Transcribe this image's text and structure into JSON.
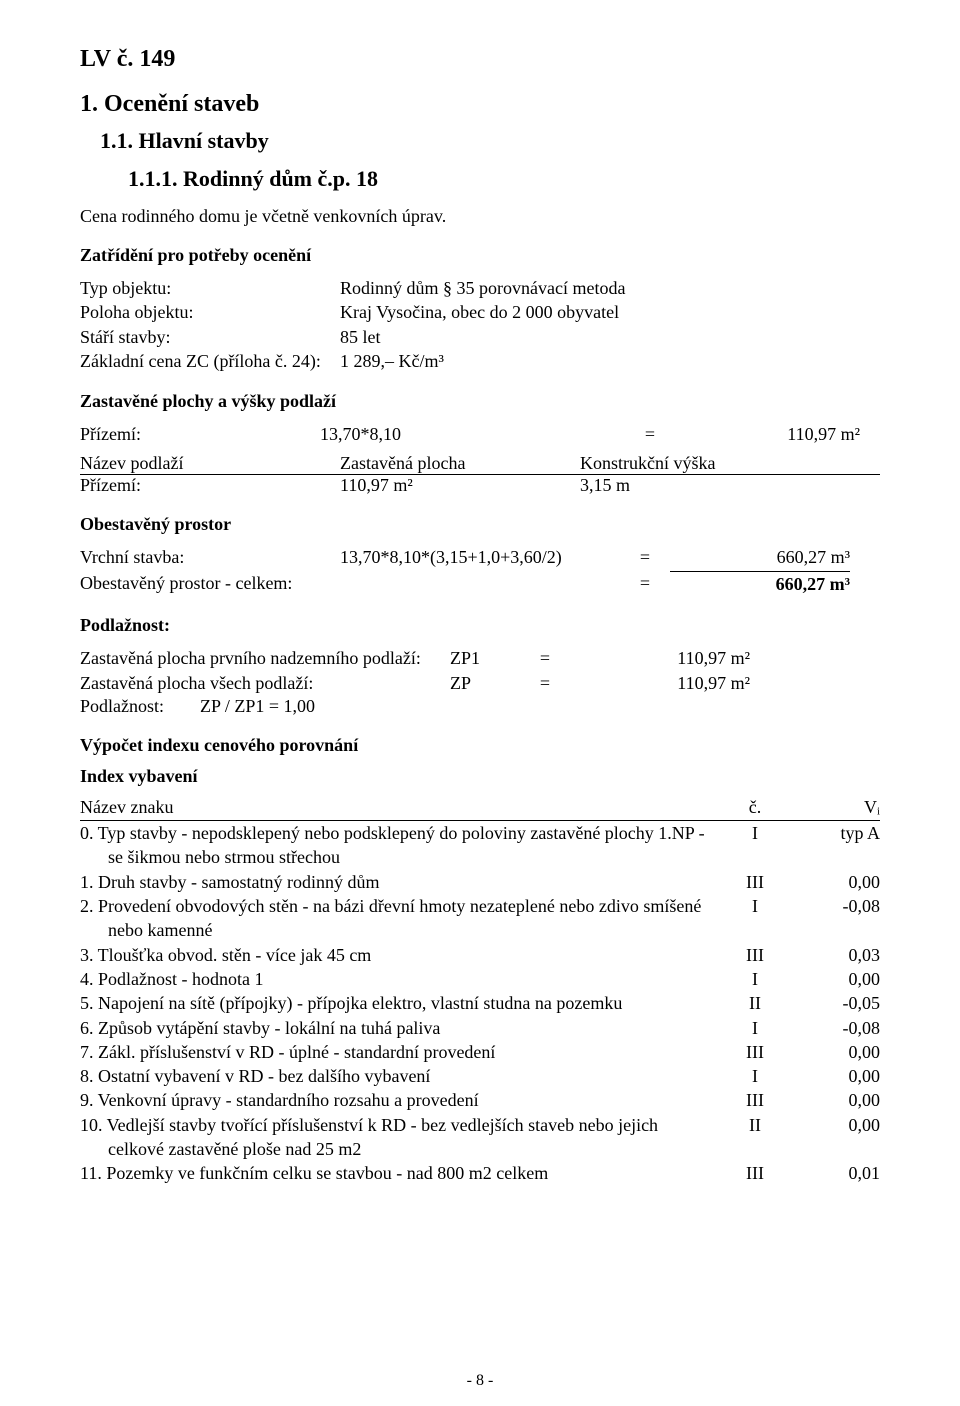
{
  "header": {
    "lv": "LV č. 149",
    "sec1": "1. Ocenění staveb",
    "sec1_1": "1.1. Hlavní stavby",
    "sec1_1_1": "1.1.1. Rodinný dům č.p. 18",
    "intro": "Cena rodinného domu je včetně venkovních úprav."
  },
  "zatrideni": {
    "title": "Zatřídění pro potřeby ocenění",
    "rows": [
      {
        "label": "Typ objektu:",
        "value": "Rodinný dům § 35 porovnávací metoda"
      },
      {
        "label": "Poloha objektu:",
        "value": "Kraj Vysočina, obec do 2 000 obyvatel"
      },
      {
        "label": "Stáří stavby:",
        "value": "85 let"
      },
      {
        "label": "Základní cena ZC (příloha č. 24):",
        "value": "1 289,–  Kč/m³"
      }
    ]
  },
  "zastavene": {
    "title": "Zastavěné plochy a výšky podlaží",
    "row": {
      "label": "Přízemí:",
      "expr": "13,70*8,10",
      "eq": "=",
      "result": "110,97 m²"
    },
    "tableHeader": {
      "c1": "Název podlaží",
      "c2": "Zastavěná plocha",
      "c3": "Konstrukční výška"
    },
    "tableRow": {
      "c1": "Přízemí:",
      "c2": "110,97 m²",
      "c3": "3,15 m"
    }
  },
  "obestaveny": {
    "title": "Obestavěný prostor",
    "row": {
      "label": "Vrchní stavba:",
      "expr": "13,70*8,10*(3,15+1,0+3,60/2)",
      "eq": "=",
      "result": "660,27 m³"
    },
    "total": {
      "label": "Obestavěný prostor - celkem:",
      "eq": "=",
      "result": "660,27 m³"
    }
  },
  "podlaznost": {
    "title": "Podlažnost:",
    "rows": [
      {
        "label": "Zastavěná plocha prvního nadzemního podlaží:",
        "sym": "ZP1",
        "eq": "=",
        "val": "110,97 m²"
      },
      {
        "label": "Zastavěná plocha všech podlaží:",
        "sym": "ZP",
        "eq": "=",
        "val": "110,97 m²"
      }
    ],
    "ratio": "Podlažnost:        ZP / ZP1 = 1,00"
  },
  "vypocet": {
    "title": "Výpočet indexu cenového porovnání",
    "subtitle": "Index vybavení",
    "header": {
      "c1": "Název znaku",
      "c2": "č.",
      "c3": "Vᵢ"
    },
    "rows": [
      {
        "c1a": "0. Typ stavby - nepodsklepený nebo podsklepený do poloviny zastavěné plochy 1.NP -",
        "c1b": "se šikmou nebo strmou střechou",
        "c2": "I",
        "c3": "typ A"
      },
      {
        "c1a": "1. Druh stavby - samostatný rodinný dům",
        "c2": "III",
        "c3": "0,00"
      },
      {
        "c1a": "2. Provedení obvodových stěn - na bázi dřevní hmoty nezateplené nebo zdivo smíšené",
        "c1b": "nebo kamenné",
        "c2": "I",
        "c3": "-0,08"
      },
      {
        "c1a": "3. Tloušťka obvod. stěn - více jak 45 cm",
        "c2": "III",
        "c3": "0,03"
      },
      {
        "c1a": "4. Podlažnost - hodnota 1",
        "c2": "I",
        "c3": "0,00"
      },
      {
        "c1a": "5. Napojení na sítě (přípojky) - přípojka elektro, vlastní studna na pozemku",
        "c2": "II",
        "c3": "-0,05"
      },
      {
        "c1a": "6. Způsob vytápění stavby - lokální na tuhá paliva",
        "c2": "I",
        "c3": "-0,08"
      },
      {
        "c1a": "7. Zákl. příslušenství v RD - úplné - standardní provedení",
        "c2": "III",
        "c3": "0,00"
      },
      {
        "c1a": "8. Ostatní vybavení v RD - bez dalšího vybavení",
        "c2": "I",
        "c3": "0,00"
      },
      {
        "c1a": "9. Venkovní úpravy - standardního rozsahu a provedení",
        "c2": "III",
        "c3": "0,00"
      },
      {
        "c1a": "10. Vedlejší stavby tvořící příslušenství k RD - bez vedlejších staveb nebo jejich",
        "c1b": "celkové zastavěné ploše nad 25 m2",
        "c2": "II",
        "c3": "0,00"
      },
      {
        "c1a": "11. Pozemky ve funkčním celku se stavbou - nad 800 m2 celkem",
        "c2": "III",
        "c3": "0,01"
      }
    ]
  },
  "footer": "- 8 -"
}
